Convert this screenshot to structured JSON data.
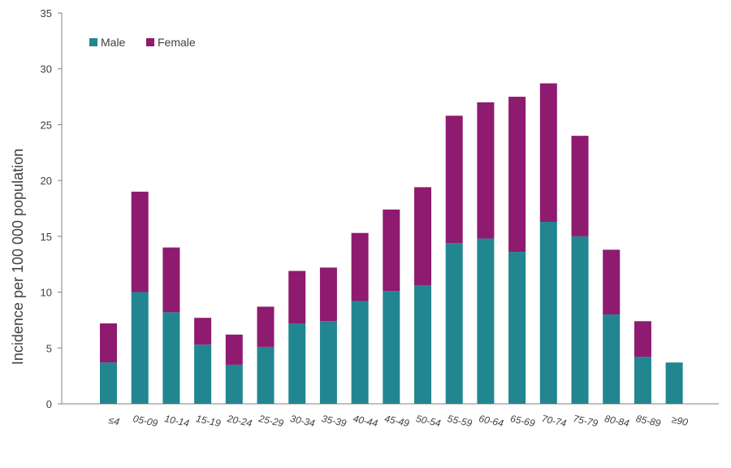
{
  "chart_data": {
    "type": "bar",
    "stacked": true,
    "title": "",
    "xlabel": "",
    "ylabel": "Incidence  per 100 000 population",
    "ylim": [
      0,
      35
    ],
    "yticks": [
      0,
      5,
      10,
      15,
      20,
      25,
      30,
      35
    ],
    "grid": false,
    "legend_position": "top-left",
    "categories": [
      "≤4",
      "05-09",
      "10-14",
      "15-19",
      "20-24",
      "25-29",
      "30-34",
      "35-39",
      "40-44",
      "45-49",
      "50-54",
      "55-59",
      "60-64",
      "65-69",
      "70-74",
      "75-79",
      "80-84",
      "85-89",
      "≥90"
    ],
    "series": [
      {
        "name": "Male",
        "color": "#21868f",
        "values": [
          3.7,
          10.0,
          8.2,
          5.3,
          3.5,
          5.1,
          7.2,
          7.4,
          9.2,
          10.1,
          10.6,
          14.4,
          14.8,
          13.6,
          16.3,
          15.0,
          8.0,
          4.2,
          3.7
        ]
      },
      {
        "name": "Female",
        "color": "#8e1b6f",
        "values": [
          3.5,
          9.0,
          5.8,
          2.4,
          2.7,
          3.6,
          4.7,
          4.8,
          6.1,
          7.3,
          8.8,
          11.4,
          12.2,
          13.9,
          12.4,
          9.0,
          5.8,
          3.2,
          0
        ]
      }
    ]
  }
}
